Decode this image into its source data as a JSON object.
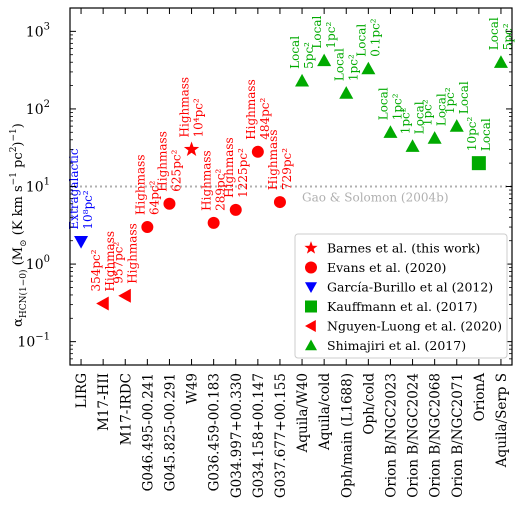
{
  "chart_data": {
    "type": "scatter",
    "ylabel": "α_HCN(1−0) (M_⊙ (K km s⁻¹ pc²)⁻¹)",
    "ylabel_parts": {
      "alpha": "α",
      "sub": "HCN(1−0)",
      "units": " (M",
      "sun": "⊙",
      "units2": " (K km s",
      "sup1": "−1",
      "units3": " pc",
      "sup2": "2",
      "units4": ")",
      "sup3": "−1",
      "units5": ")"
    },
    "yscale": "log",
    "ylim": [
      0.05,
      2000
    ],
    "yticks": [
      {
        "value": 0.1,
        "base": "10",
        "exp": "−1"
      },
      {
        "value": 1,
        "base": "10",
        "exp": "0"
      },
      {
        "value": 10,
        "base": "10",
        "exp": "1"
      },
      {
        "value": 100,
        "base": "10",
        "exp": "2"
      },
      {
        "value": 1000,
        "base": "10",
        "exp": "3"
      }
    ],
    "categories": [
      "LIRG",
      "M17-HII",
      "M17-IRDC",
      "G046.495-00.241",
      "G045.825-00.291",
      "W49",
      "G036.459-00.183",
      "G034.997+00.330",
      "G034.158+00.147",
      "G037.677+00.155",
      "Aquila/W40",
      "Aquila/cold",
      "Oph/main (L1688)",
      "Oph/cold",
      "Orion B/NGC2023",
      "Orion B/NGC2024",
      "Orion B/NGC2068",
      "Orion B/NGC2071",
      "OrionA",
      "Aquila/Serp S"
    ],
    "reference_line": {
      "value": 10,
      "label": "Gao & Solomon (2004b)",
      "color": "#b0b0b0"
    },
    "grid": false,
    "legend_position": "bottom-right",
    "series": [
      {
        "name": "Barnes et al. (this work)",
        "marker": "star",
        "color": "#ff0000",
        "points": [
          {
            "x": "W49",
            "y": 30,
            "label": "Highmass 10⁴pc²"
          }
        ]
      },
      {
        "name": "Evans et al. (2020)",
        "marker": "circle",
        "color": "#ff0000",
        "points": [
          {
            "x": "G046.495-00.241",
            "y": 3.0,
            "label": "Highmass 64pc²"
          },
          {
            "x": "G045.825-00.291",
            "y": 6.0,
            "label": "Highmass 625pc²"
          },
          {
            "x": "G036.459-00.183",
            "y": 3.4,
            "label": "Highmass 289pc²"
          },
          {
            "x": "G034.997+00.330",
            "y": 5.0,
            "label": "Highmass 1225pc²"
          },
          {
            "x": "G034.158+00.147",
            "y": 28,
            "label": "Highmass 484pc²"
          },
          {
            "x": "G037.677+00.155",
            "y": 6.3,
            "label": "Highmass 729pc²"
          }
        ]
      },
      {
        "name": "García-Burillo et al (2012)",
        "marker": "triangle-down",
        "color": "#0000ff",
        "points": [
          {
            "x": "LIRG",
            "y": 1.95,
            "label": "Extragalactic 10⁸pc²"
          }
        ]
      },
      {
        "name": "Kauffmann et al. (2017)",
        "marker": "square",
        "color": "#00aa00",
        "points": [
          {
            "x": "OrionA",
            "y": 20,
            "label": "10pc² Local"
          }
        ]
      },
      {
        "name": "Nguyen-Luong et al. (2020)",
        "marker": "triangle-left",
        "color": "#ff0000",
        "points": [
          {
            "x": "M17-HII",
            "y": 0.31,
            "label": "354pc² Highmass"
          },
          {
            "x": "M17-IRDC",
            "y": 0.39,
            "label": "957pc² Highmass"
          }
        ]
      },
      {
        "name": "Shimajiri et al. (2017)",
        "marker": "triangle-up",
        "color": "#00aa00",
        "points": [
          {
            "x": "Aquila/W40",
            "y": 230,
            "label": "Local 5pc²"
          },
          {
            "x": "Aquila/cold",
            "y": 420,
            "label": "Local 1pc²"
          },
          {
            "x": "Oph/main (L1688)",
            "y": 160,
            "label": "Local 1pc²"
          },
          {
            "x": "Oph/cold",
            "y": 330,
            "label": "Local 0.1pc²"
          },
          {
            "x": "Orion B/NGC2023",
            "y": 50,
            "label": "Local 1pc²"
          },
          {
            "x": "Orion B/NGC2024",
            "y": 33,
            "label": "1pc² Local"
          },
          {
            "x": "Orion B/NGC2068",
            "y": 42,
            "label": "1pc² Local"
          },
          {
            "x": "Orion B/NGC2071",
            "y": 60,
            "label": "1pc² Local"
          },
          {
            "x": "Aquila/Serp S",
            "y": 400,
            "label": "Local 5pc²"
          }
        ]
      }
    ]
  }
}
